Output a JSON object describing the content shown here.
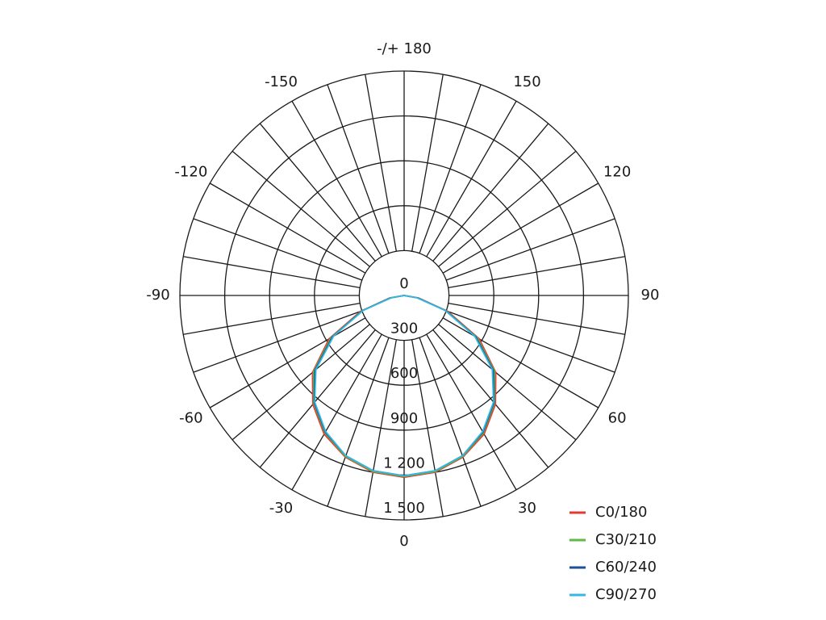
{
  "chart_data": {
    "type": "polar",
    "x": [
      -90,
      -80,
      -70,
      -60,
      -50,
      -40,
      -30,
      -20,
      -10,
      0,
      10,
      20,
      30,
      40,
      50,
      60,
      70,
      80,
      90
    ],
    "series": [
      {
        "name": "C0/180",
        "color": "#e53a2f",
        "values": [
          0,
          100,
          310,
          580,
          800,
          950,
          1070,
          1150,
          1200,
          1215,
          1200,
          1150,
          1070,
          950,
          800,
          580,
          310,
          100,
          0
        ]
      },
      {
        "name": "C30/210",
        "color": "#5dbb46",
        "values": [
          0,
          95,
          300,
          565,
          790,
          940,
          1060,
          1145,
          1195,
          1210,
          1195,
          1145,
          1060,
          940,
          790,
          565,
          300,
          95,
          0
        ]
      },
      {
        "name": "C60/240",
        "color": "#1d4f9a",
        "values": [
          0,
          90,
          295,
          555,
          780,
          935,
          1055,
          1140,
          1190,
          1205,
          1190,
          1140,
          1055,
          935,
          780,
          555,
          295,
          90,
          0
        ]
      },
      {
        "name": "C90/270",
        "color": "#35b7e5",
        "values": [
          0,
          85,
          290,
          545,
          770,
          930,
          1050,
          1140,
          1190,
          1205,
          1190,
          1140,
          1050,
          930,
          770,
          545,
          290,
          85,
          0
        ]
      }
    ],
    "rlim": [
      0,
      1500
    ],
    "rticks": [
      0,
      300,
      600,
      900,
      {
        "value": 1200,
        "label": "1 200"
      },
      {
        "value": 1500,
        "label": "1 500"
      }
    ],
    "xticks": [
      0,
      30,
      60,
      90,
      120,
      150,
      {
        "value": 180,
        "label": "-/+ 180"
      },
      -150,
      -120,
      -90,
      -60,
      -30
    ]
  }
}
